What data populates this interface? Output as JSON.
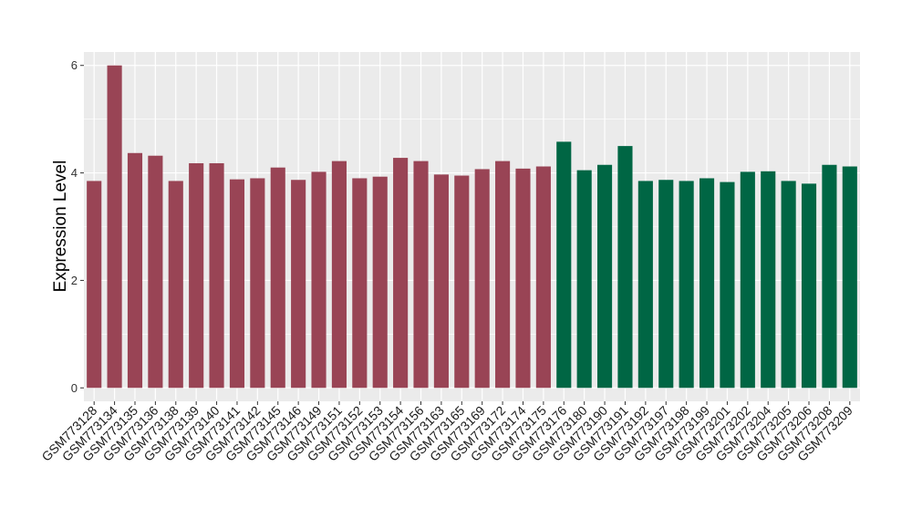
{
  "chart_data": {
    "type": "bar",
    "title": "",
    "xlabel": "",
    "ylabel": "Expression Level",
    "ylim": [
      -0.25,
      6.25
    ],
    "yticks": [
      0,
      2,
      4,
      6
    ],
    "grid": true,
    "legend": "none",
    "categories": [
      "GSM773128",
      "GSM773134",
      "GSM773135",
      "GSM773136",
      "GSM773138",
      "GSM773139",
      "GSM773140",
      "GSM773141",
      "GSM773142",
      "GSM773145",
      "GSM773146",
      "GSM773149",
      "GSM773151",
      "GSM773152",
      "GSM773153",
      "GSM773154",
      "GSM773156",
      "GSM773163",
      "GSM773165",
      "GSM773169",
      "GSM773172",
      "GSM773174",
      "GSM773175",
      "GSM773176",
      "GSM773180",
      "GSM773190",
      "GSM773191",
      "GSM773192",
      "GSM773197",
      "GSM773198",
      "GSM773199",
      "GSM773201",
      "GSM773202",
      "GSM773204",
      "GSM773205",
      "GSM773206",
      "GSM773208",
      "GSM773209"
    ],
    "values": [
      3.85,
      6.0,
      4.37,
      4.32,
      3.85,
      4.18,
      4.18,
      3.88,
      3.9,
      4.1,
      3.87,
      4.02,
      4.22,
      3.9,
      3.93,
      4.28,
      4.22,
      3.97,
      3.95,
      4.07,
      4.22,
      4.08,
      4.12,
      4.58,
      4.05,
      4.15,
      4.5,
      3.85,
      3.87,
      3.85,
      3.9,
      3.83,
      4.02,
      4.03,
      3.85,
      3.8,
      4.15,
      4.12
    ],
    "groups": [
      0,
      0,
      0,
      0,
      0,
      0,
      0,
      0,
      0,
      0,
      0,
      0,
      0,
      0,
      0,
      0,
      0,
      0,
      0,
      0,
      0,
      0,
      0,
      1,
      1,
      1,
      1,
      1,
      1,
      1,
      1,
      1,
      1,
      1,
      1,
      1,
      1,
      1
    ],
    "group_colors": [
      "#994455",
      "#006644"
    ],
    "panel_color": "#ebebeb",
    "gridline_color": "#ffffff"
  }
}
